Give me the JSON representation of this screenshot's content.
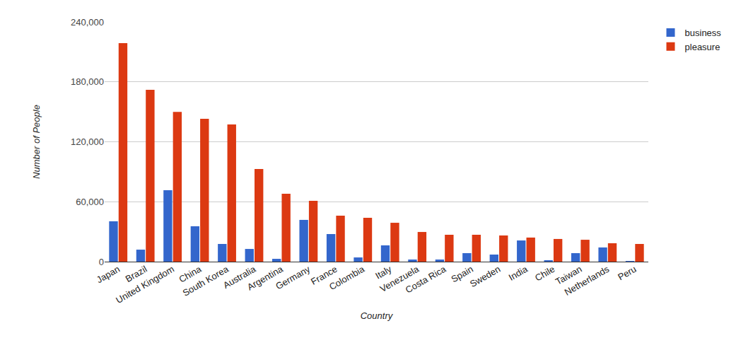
{
  "chart_data": {
    "type": "bar",
    "x_label": "Country",
    "y_label": "Number of People",
    "categories": [
      "Japan",
      "Brazil",
      "United Kingdom",
      "China",
      "South Korea",
      "Australia",
      "Argentina",
      "Germany",
      "France",
      "Colombia",
      "Italy",
      "Venezuela",
      "Costa Rica",
      "Spain",
      "Sweden",
      "India",
      "Chile",
      "Taiwan",
      "Netherlands",
      "Peru"
    ],
    "series": [
      {
        "name": "business",
        "color": "#3366cc",
        "values": [
          40400,
          12000,
          71500,
          35400,
          17700,
          12700,
          2800,
          41800,
          27600,
          4200,
          16300,
          2100,
          2100,
          8500,
          7100,
          21200,
          1400,
          8500,
          14200,
          700
        ]
      },
      {
        "name": "pleasure",
        "color": "#dc3912",
        "values": [
          218800,
          172000,
          150000,
          143000,
          137300,
          92700,
          68000,
          60900,
          46000,
          43900,
          38900,
          29700,
          26900,
          26900,
          26200,
          24100,
          22700,
          21900,
          18400,
          17700
        ]
      }
    ],
    "ylim": [
      0,
      240000
    ],
    "yticks": [
      {
        "value": 0,
        "label": "0"
      },
      {
        "value": 60000,
        "label": "60,000"
      },
      {
        "value": 120000,
        "label": "120,000"
      },
      {
        "value": 180000,
        "label": "180,000"
      },
      {
        "value": 240000,
        "label": "240,000"
      }
    ],
    "grid": true,
    "legend": "right"
  }
}
